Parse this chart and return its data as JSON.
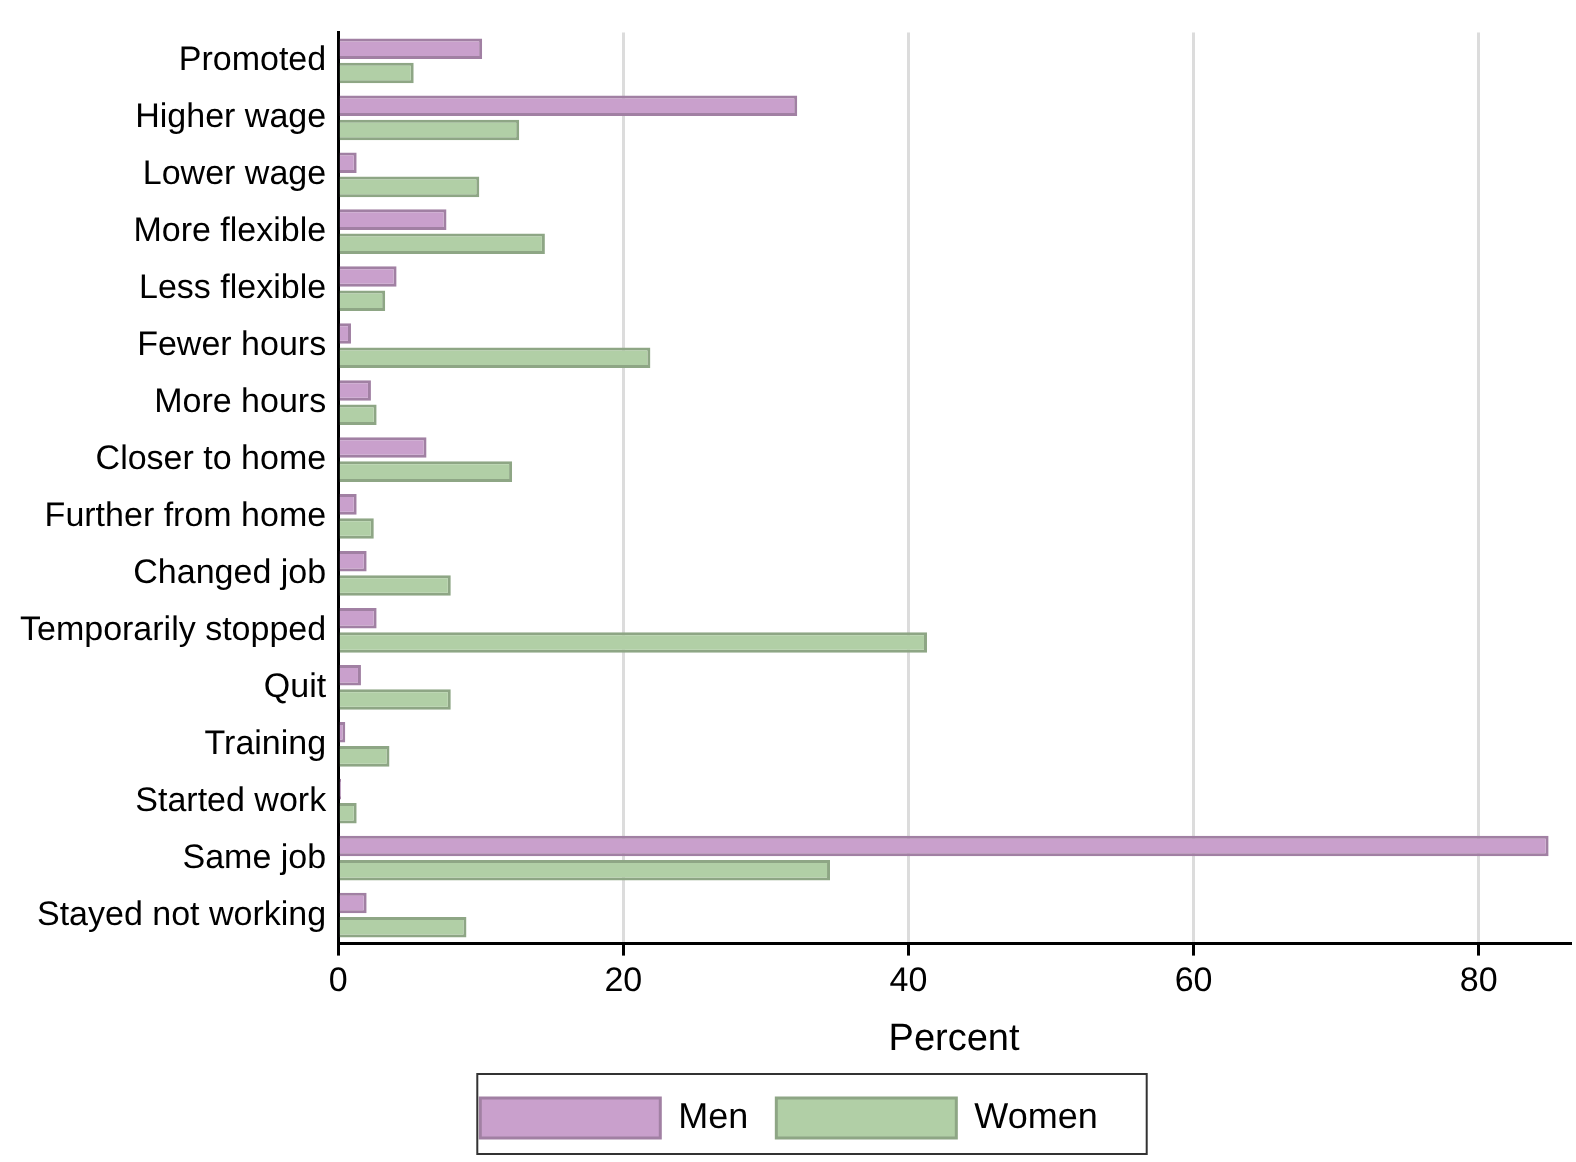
{
  "chart_data": {
    "type": "bar",
    "orientation": "horizontal",
    "xlabel": "Percent",
    "categories": [
      "Promoted",
      "Higher wage",
      "Lower wage",
      "More flexible",
      "Less flexible",
      "Fewer hours",
      "More hours",
      "Closer to home",
      "Further from home",
      "Changed job",
      "Temporarily stopped",
      "Quit",
      "Training",
      "Started work",
      "Same job",
      "Stayed not working"
    ],
    "series": [
      {
        "name": "Men",
        "color": "#c9a0cc",
        "values": [
          10.1,
          32.2,
          1.3,
          7.6,
          4.1,
          0.9,
          2.3,
          6.2,
          1.3,
          2.0,
          2.7,
          1.6,
          0.5,
          0.2,
          84.9,
          2.0
        ]
      },
      {
        "name": "Women",
        "color": "#b1cfa6",
        "values": [
          5.3,
          12.7,
          9.9,
          14.5,
          3.3,
          21.9,
          2.7,
          12.2,
          2.5,
          7.9,
          41.3,
          7.9,
          3.6,
          1.3,
          34.5,
          9.0
        ]
      }
    ],
    "xlim": [
      0,
      86.4
    ],
    "xticks": [
      0,
      20,
      40,
      60,
      80
    ],
    "grid": "x",
    "legend": "bottom"
  }
}
